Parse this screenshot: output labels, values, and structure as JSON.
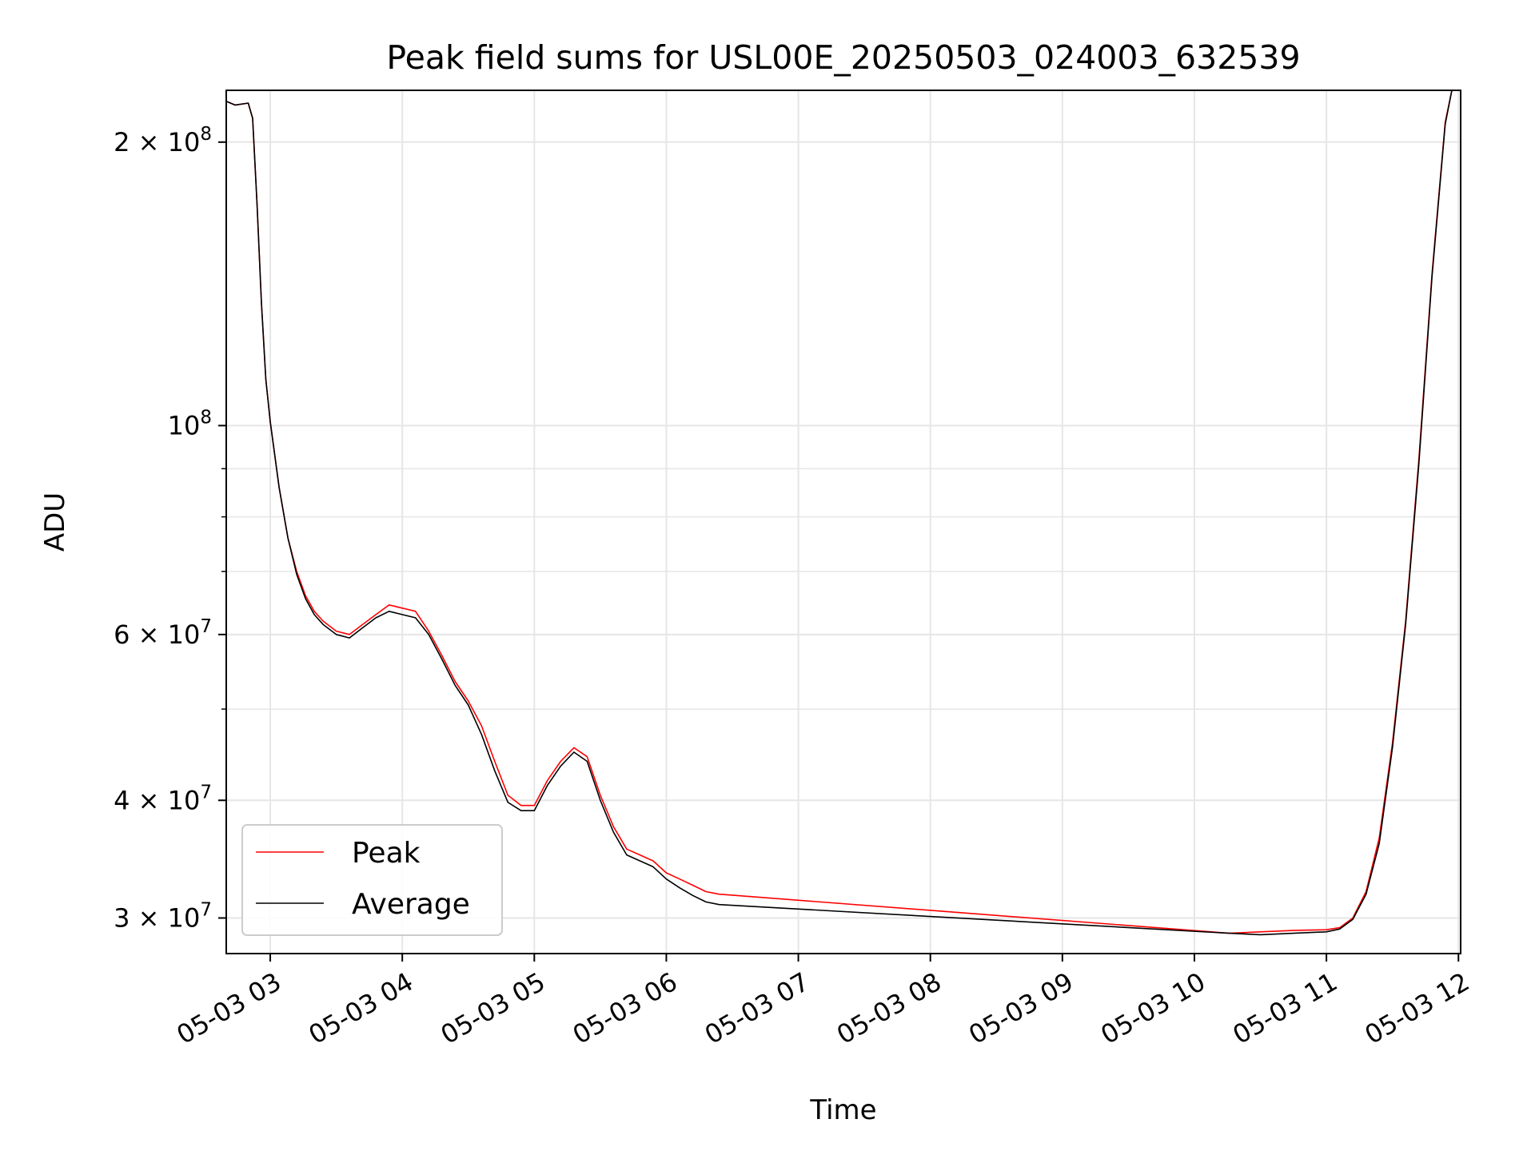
{
  "chart_data": {
    "type": "line",
    "title": "Peak field sums for USL00E_20250503_024003_632539",
    "xlabel": "Time",
    "ylabel": "ADU",
    "yscale": "log",
    "grid": true,
    "legend_position": "lower-left",
    "xlim": [
      "2025-05-03 02:40",
      "2025-05-03 12:01"
    ],
    "ylim": [
      27500000,
      227000000
    ],
    "x_ticks": [
      {
        "value": "2025-05-03 03:00",
        "label": "05-03 03"
      },
      {
        "value": "2025-05-03 04:00",
        "label": "05-03 04"
      },
      {
        "value": "2025-05-03 05:00",
        "label": "05-03 05"
      },
      {
        "value": "2025-05-03 06:00",
        "label": "05-03 06"
      },
      {
        "value": "2025-05-03 07:00",
        "label": "05-03 07"
      },
      {
        "value": "2025-05-03 08:00",
        "label": "05-03 08"
      },
      {
        "value": "2025-05-03 09:00",
        "label": "05-03 09"
      },
      {
        "value": "2025-05-03 10:00",
        "label": "05-03 10"
      },
      {
        "value": "2025-05-03 11:00",
        "label": "05-03 11"
      },
      {
        "value": "2025-05-03 12:00",
        "label": "05-03 12"
      }
    ],
    "y_major_ticks": [
      {
        "value": 100000000,
        "base": "10",
        "exp": "8",
        "mant": ""
      },
      {
        "value": 200000000,
        "base": "10",
        "exp": "8",
        "mant": "2 × "
      },
      {
        "value": 60000000,
        "base": "10",
        "exp": "7",
        "mant": "6 × "
      },
      {
        "value": 40000000,
        "base": "10",
        "exp": "7",
        "mant": "4 × "
      },
      {
        "value": 30000000,
        "base": "10",
        "exp": "7",
        "mant": "3 × "
      }
    ],
    "y_minor_ticks": [
      50000000,
      70000000,
      80000000,
      90000000
    ],
    "series": [
      {
        "name": "Peak",
        "color": "#ff0000",
        "points": [
          [
            "2025-05-03 02:40",
            221000000
          ],
          [
            "2025-05-03 02:44",
            219000000
          ],
          [
            "2025-05-03 02:50",
            220000000
          ],
          [
            "2025-05-03 02:52",
            212000000
          ],
          [
            "2025-05-03 02:54",
            172000000
          ],
          [
            "2025-05-03 02:56",
            135000000
          ],
          [
            "2025-05-03 02:58",
            112000000
          ],
          [
            "2025-05-03 03:00",
            101000000
          ],
          [
            "2025-05-03 03:04",
            86000000
          ],
          [
            "2025-05-03 03:08",
            76000000
          ],
          [
            "2025-05-03 03:12",
            70000000
          ],
          [
            "2025-05-03 03:16",
            66000000
          ],
          [
            "2025-05-03 03:20",
            63500000
          ],
          [
            "2025-05-03 03:24",
            62000000
          ],
          [
            "2025-05-03 03:30",
            60500000
          ],
          [
            "2025-05-03 03:36",
            60000000
          ],
          [
            "2025-05-03 03:42",
            61500000
          ],
          [
            "2025-05-03 03:48",
            63000000
          ],
          [
            "2025-05-03 03:54",
            64500000
          ],
          [
            "2025-05-03 04:00",
            64000000
          ],
          [
            "2025-05-03 04:06",
            63500000
          ],
          [
            "2025-05-03 04:12",
            60500000
          ],
          [
            "2025-05-03 04:18",
            57000000
          ],
          [
            "2025-05-03 04:24",
            53500000
          ],
          [
            "2025-05-03 04:30",
            51000000
          ],
          [
            "2025-05-03 04:36",
            48000000
          ],
          [
            "2025-05-03 04:42",
            44000000
          ],
          [
            "2025-05-03 04:48",
            40500000
          ],
          [
            "2025-05-03 04:54",
            39500000
          ],
          [
            "2025-05-03 05:00",
            39500000
          ],
          [
            "2025-05-03 05:06",
            42000000
          ],
          [
            "2025-05-03 05:12",
            44000000
          ],
          [
            "2025-05-03 05:18",
            45500000
          ],
          [
            "2025-05-03 05:24",
            44500000
          ],
          [
            "2025-05-03 05:30",
            40500000
          ],
          [
            "2025-05-03 05:36",
            37500000
          ],
          [
            "2025-05-03 05:42",
            35500000
          ],
          [
            "2025-05-03 05:48",
            35000000
          ],
          [
            "2025-05-03 05:54",
            34500000
          ],
          [
            "2025-05-03 06:00",
            33500000
          ],
          [
            "2025-05-03 06:06",
            33000000
          ],
          [
            "2025-05-03 06:12",
            32500000
          ],
          [
            "2025-05-03 06:18",
            32000000
          ],
          [
            "2025-05-03 06:24",
            31800000
          ],
          [
            "2025-05-03 10:16",
            28900000
          ],
          [
            "2025-05-03 10:30",
            29000000
          ],
          [
            "2025-05-03 10:45",
            29100000
          ],
          [
            "2025-05-03 11:00",
            29150000
          ],
          [
            "2025-05-03 11:06",
            29300000
          ],
          [
            "2025-05-03 11:12",
            30000000
          ],
          [
            "2025-05-03 11:18",
            32000000
          ],
          [
            "2025-05-03 11:24",
            36500000
          ],
          [
            "2025-05-03 11:30",
            46000000
          ],
          [
            "2025-05-03 11:36",
            62000000
          ],
          [
            "2025-05-03 11:42",
            92000000
          ],
          [
            "2025-05-03 11:48",
            145000000
          ],
          [
            "2025-05-03 11:54",
            210000000
          ],
          [
            "2025-05-03 11:57",
            227000000
          ],
          [
            "2025-05-03 12:01",
            227000000
          ]
        ]
      },
      {
        "name": "Average",
        "color": "#000000",
        "points": [
          [
            "2025-05-03 02:40",
            221000000
          ],
          [
            "2025-05-03 02:44",
            219000000
          ],
          [
            "2025-05-03 02:50",
            220000000
          ],
          [
            "2025-05-03 02:52",
            212000000
          ],
          [
            "2025-05-03 02:54",
            172000000
          ],
          [
            "2025-05-03 02:56",
            135000000
          ],
          [
            "2025-05-03 02:58",
            112000000
          ],
          [
            "2025-05-03 03:00",
            101000000
          ],
          [
            "2025-05-03 03:04",
            86000000
          ],
          [
            "2025-05-03 03:08",
            76000000
          ],
          [
            "2025-05-03 03:12",
            69500000
          ],
          [
            "2025-05-03 03:16",
            65500000
          ],
          [
            "2025-05-03 03:20",
            63000000
          ],
          [
            "2025-05-03 03:24",
            61500000
          ],
          [
            "2025-05-03 03:30",
            60000000
          ],
          [
            "2025-05-03 03:36",
            59500000
          ],
          [
            "2025-05-03 03:42",
            61000000
          ],
          [
            "2025-05-03 03:48",
            62500000
          ],
          [
            "2025-05-03 03:54",
            63500000
          ],
          [
            "2025-05-03 04:00",
            63000000
          ],
          [
            "2025-05-03 04:06",
            62500000
          ],
          [
            "2025-05-03 04:12",
            60000000
          ],
          [
            "2025-05-03 04:18",
            56500000
          ],
          [
            "2025-05-03 04:24",
            53000000
          ],
          [
            "2025-05-03 04:30",
            50500000
          ],
          [
            "2025-05-03 04:36",
            47000000
          ],
          [
            "2025-05-03 04:42",
            43000000
          ],
          [
            "2025-05-03 04:48",
            39800000
          ],
          [
            "2025-05-03 04:54",
            39000000
          ],
          [
            "2025-05-03 05:00",
            39000000
          ],
          [
            "2025-05-03 05:06",
            41500000
          ],
          [
            "2025-05-03 05:12",
            43500000
          ],
          [
            "2025-05-03 05:18",
            45000000
          ],
          [
            "2025-05-03 05:24",
            44000000
          ],
          [
            "2025-05-03 05:30",
            40000000
          ],
          [
            "2025-05-03 05:36",
            37000000
          ],
          [
            "2025-05-03 05:42",
            35000000
          ],
          [
            "2025-05-03 05:48",
            34500000
          ],
          [
            "2025-05-03 05:54",
            34000000
          ],
          [
            "2025-05-03 06:00",
            33000000
          ],
          [
            "2025-05-03 06:06",
            32300000
          ],
          [
            "2025-05-03 06:12",
            31700000
          ],
          [
            "2025-05-03 06:18",
            31200000
          ],
          [
            "2025-05-03 06:24",
            31000000
          ],
          [
            "2025-05-03 10:16",
            28900000
          ],
          [
            "2025-05-03 10:30",
            28800000
          ],
          [
            "2025-05-03 10:45",
            28900000
          ],
          [
            "2025-05-03 11:00",
            29000000
          ],
          [
            "2025-05-03 11:06",
            29200000
          ],
          [
            "2025-05-03 11:12",
            29900000
          ],
          [
            "2025-05-03 11:18",
            31800000
          ],
          [
            "2025-05-03 11:24",
            36000000
          ],
          [
            "2025-05-03 11:30",
            45500000
          ],
          [
            "2025-05-03 11:36",
            61500000
          ],
          [
            "2025-05-03 11:42",
            91000000
          ],
          [
            "2025-05-03 11:48",
            144000000
          ],
          [
            "2025-05-03 11:54",
            209000000
          ],
          [
            "2025-05-03 11:57",
            227000000
          ],
          [
            "2025-05-03 12:01",
            227000000
          ]
        ]
      }
    ]
  }
}
